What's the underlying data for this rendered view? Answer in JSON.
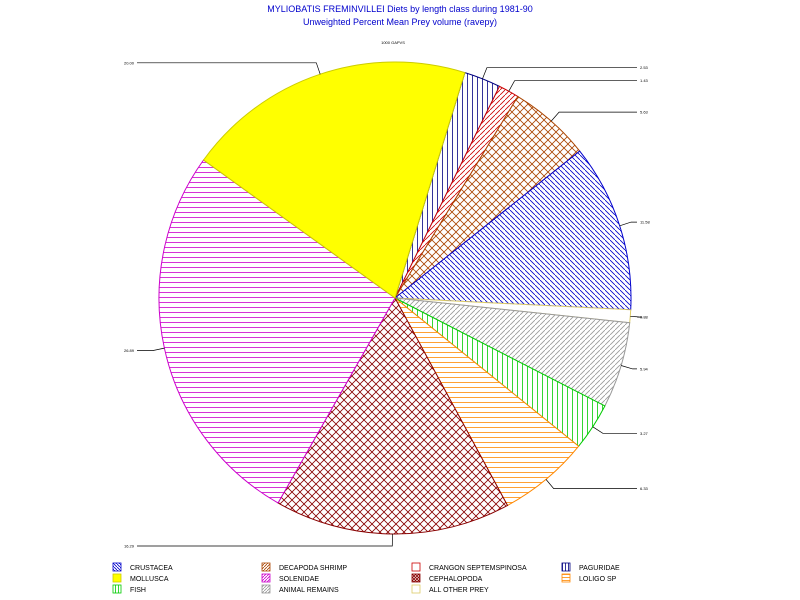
{
  "chart_data": {
    "type": "pie",
    "title": "MYLIOBATIS FREMINVILLEI Diets by length class during 1981-90",
    "subtitle": "Unweighted Percent Mean Prey volume (ravepy)",
    "group_label": "1000 GAPVS",
    "slices": [
      {
        "name": "PAGURIDAE",
        "value": 2.53,
        "label": "2.53",
        "color": "#000080",
        "pattern": "vertical"
      },
      {
        "name": "CRANGON SEPTEMSPINOSA",
        "value": 1.43,
        "label": "1.43",
        "color": "#cc0000",
        "pattern": "diag-right"
      },
      {
        "name": "DECAPODA SHRIMP",
        "value": 5.63,
        "label": "5.63",
        "color": "#aa4400",
        "pattern": "crosshatch"
      },
      {
        "name": "CRUSTACEA",
        "value": 11.58,
        "label": "11.58",
        "color": "#0000cc",
        "pattern": "diag-left"
      },
      {
        "name": "ALL OTHER PREY",
        "value": 0.88,
        "label": "0.88",
        "color": "#ddcc66",
        "pattern": "none"
      },
      {
        "name": "ANIMAL REMAINS",
        "value": 5.94,
        "label": "5.94",
        "color": "#999999",
        "pattern": "diag-right"
      },
      {
        "name": "FISH",
        "value": 3.27,
        "label": "3.27",
        "color": "#00cc00",
        "pattern": "vertical"
      },
      {
        "name": "LOLIGO SP",
        "value": 6.33,
        "label": "6.33",
        "color": "#ff8800",
        "pattern": "horizontal"
      },
      {
        "name": "CEPHALOPODA",
        "value": 16.29,
        "label": "16.29",
        "color": "#880000",
        "pattern": "crosshatch"
      },
      {
        "name": "SOLENIDAE",
        "value": 26.89,
        "label": "26.89",
        "color": "#cc00cc",
        "pattern": "horizontal"
      },
      {
        "name": "MOLLUSCA",
        "value": 20.0,
        "label": "20.00",
        "color": "#ffff00",
        "pattern": "solid"
      }
    ],
    "legend": [
      {
        "name": "CRUSTACEA",
        "color": "#0000cc",
        "pattern": "diag-left"
      },
      {
        "name": "DECAPODA SHRIMP",
        "color": "#aa4400",
        "pattern": "diag-right"
      },
      {
        "name": "CRANGON SEPTEMSPINOSA",
        "color": "#cc0000",
        "pattern": "none"
      },
      {
        "name": "PAGURIDAE",
        "color": "#000080",
        "pattern": "vertical"
      },
      {
        "name": "MOLLUSCA",
        "color": "#ffff00",
        "pattern": "solid"
      },
      {
        "name": "SOLENIDAE",
        "color": "#cc00cc",
        "pattern": "diag-right"
      },
      {
        "name": "CEPHALOPODA",
        "color": "#880000",
        "pattern": "crosshatch"
      },
      {
        "name": "LOLIGO SP",
        "color": "#ff8800",
        "pattern": "horizontal"
      },
      {
        "name": "FISH",
        "color": "#00cc00",
        "pattern": "vertical"
      },
      {
        "name": "ANIMAL REMAINS",
        "color": "#999999",
        "pattern": "diag-right"
      },
      {
        "name": "ALL OTHER PREY",
        "color": "#ddcc66",
        "pattern": "none"
      }
    ],
    "legend_position": "bottom"
  }
}
